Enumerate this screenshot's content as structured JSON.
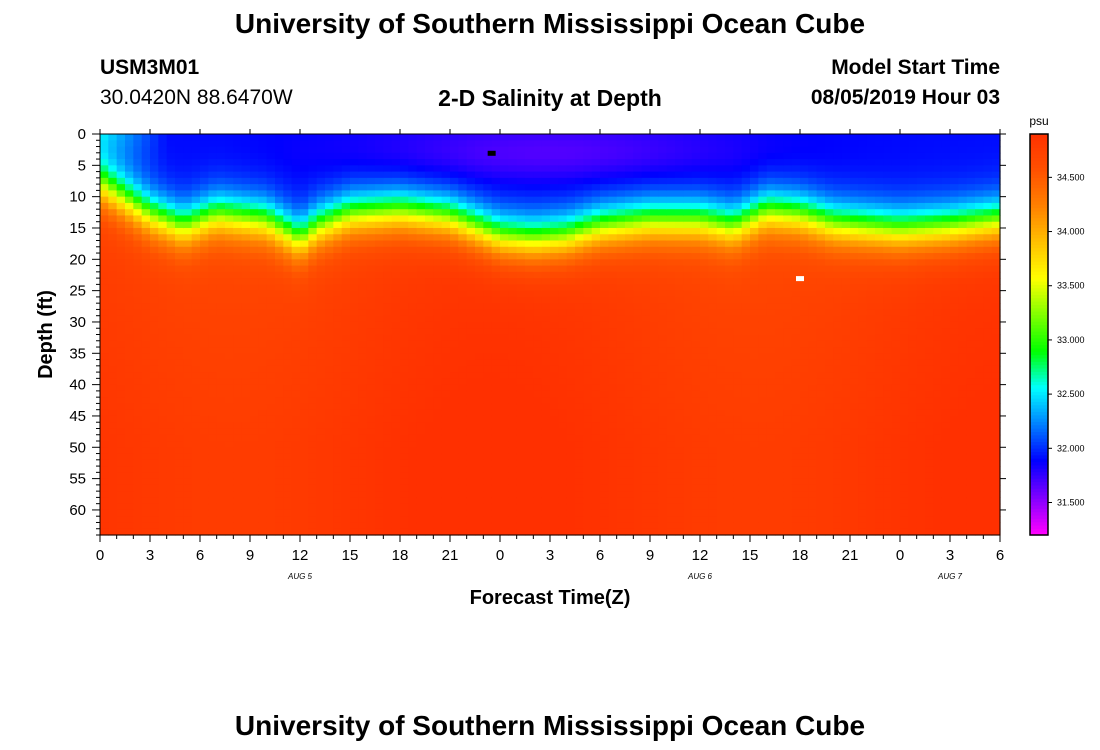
{
  "page": {
    "title": "University of Southern Mississippi Ocean Cube",
    "station_id": "USM3M01",
    "coordinates": "30.0420N 88.6470W",
    "plot_title": "2-D Salinity at Depth",
    "model_start_label": "Model Start Time",
    "model_start_value": "08/05/2019 Hour 03",
    "footer_title": "University of Southern Mississippi Ocean Cube"
  },
  "colors": {
    "scale": [
      "#ff00ff",
      "#7f00ff",
      "#0000ff",
      "#0080ff",
      "#00ffff",
      "#00ff00",
      "#80ff00",
      "#ffff00",
      "#ffc000",
      "#ff8000",
      "#ff5000",
      "#ff3000"
    ]
  },
  "chart_data": {
    "type": "heatmap",
    "title": "2-D Salinity at Depth",
    "xlabel": "Forecast Time(Z)",
    "ylabel": "Depth (ft)",
    "xlim": [
      0,
      54
    ],
    "ylim": [
      64,
      0
    ],
    "x_ticks": [
      0,
      3,
      6,
      9,
      12,
      15,
      18,
      21,
      24,
      27,
      30,
      33,
      36,
      39,
      42,
      45,
      48,
      51,
      54
    ],
    "x_tick_labels": [
      "0",
      "3",
      "6",
      "9",
      "12",
      "15",
      "18",
      "21",
      "0",
      "3",
      "6",
      "9",
      "12",
      "15",
      "18",
      "21",
      "0",
      "3",
      "6"
    ],
    "y_ticks": [
      0,
      5,
      10,
      15,
      20,
      25,
      30,
      35,
      40,
      45,
      50,
      55,
      60
    ],
    "y_tick_labels": [
      "0",
      "5",
      "10",
      "15",
      "20",
      "25",
      "30",
      "35",
      "40",
      "45",
      "50",
      "55",
      "60"
    ],
    "date_labels": [
      {
        "x": 12,
        "text": "AUG 5"
      },
      {
        "x": 36,
        "text": "AUG 6"
      },
      {
        "x": 51,
        "text": "AUG 7"
      }
    ],
    "markers": [
      {
        "x": 23.5,
        "depth": 3,
        "color": "#000000"
      },
      {
        "x": 42,
        "depth": 23,
        "color": "#ffffff"
      }
    ],
    "colorbar": {
      "unit": "psu",
      "min": 31.2,
      "max": 34.9,
      "ticks": [
        31.5,
        32.0,
        32.5,
        33.0,
        33.5,
        34.0,
        34.5
      ],
      "tick_labels": [
        "31.500",
        "32.000",
        "32.500",
        "33.000",
        "33.500",
        "34.000",
        "34.500"
      ]
    },
    "halocline_depth_ft": [
      [
        0,
        5
      ],
      [
        3,
        10
      ],
      [
        5,
        12
      ],
      [
        7,
        10
      ],
      [
        10,
        11
      ],
      [
        12,
        14
      ],
      [
        13,
        12
      ],
      [
        15,
        10
      ],
      [
        18,
        9.5
      ],
      [
        21,
        10.5
      ],
      [
        24,
        13.5
      ],
      [
        26,
        14
      ],
      [
        28,
        13.5
      ],
      [
        30,
        12
      ],
      [
        33,
        11
      ],
      [
        36,
        11
      ],
      [
        38,
        12
      ],
      [
        40,
        9.5
      ],
      [
        42,
        10
      ],
      [
        44,
        11.5
      ],
      [
        46,
        12
      ],
      [
        48,
        12.5
      ],
      [
        51,
        12
      ],
      [
        54,
        11
      ]
    ],
    "salinity_profile": {
      "surface_psu": 31.7,
      "upper_layer_psu": 31.9,
      "bottom_psu": 34.7
    }
  }
}
